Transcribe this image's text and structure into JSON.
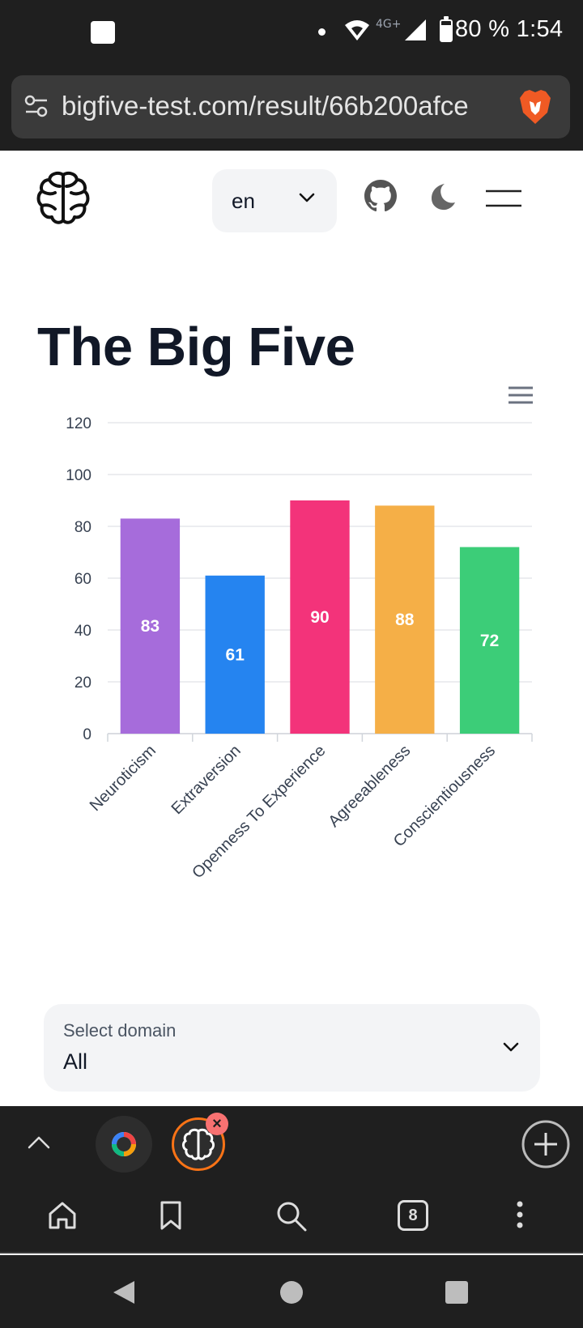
{
  "status_bar": {
    "network": "4G+",
    "battery_percent": "80 %",
    "battery_level": 0.8,
    "time": "1:54",
    "text": "80 % 1:54"
  },
  "browser": {
    "url": "bigfive-test.com/result/66b200afce",
    "open_tabs": "8"
  },
  "header": {
    "language": "en",
    "icons": [
      "brain-logo-icon",
      "github-icon",
      "moon-icon",
      "menu-icon"
    ]
  },
  "page": {
    "title": "The Big Five"
  },
  "chart_data": {
    "type": "bar",
    "categories": [
      "Neuroticism",
      "Extraversion",
      "Openness To Experience",
      "Agreeableness",
      "Conscientiousness"
    ],
    "values": [
      83,
      61,
      90,
      88,
      72
    ],
    "colors": [
      "#a66cdb",
      "#2584f0",
      "#f3337a",
      "#f5af47",
      "#3ccd78"
    ],
    "ylim": [
      0,
      120
    ],
    "yticks": [
      "0",
      "20",
      "40",
      "60",
      "80",
      "100",
      "120"
    ],
    "data_labels": [
      "83",
      "61",
      "90",
      "88",
      "72"
    ],
    "grid": true,
    "legend": "none"
  },
  "domain_select": {
    "label": "Select domain",
    "value": "All"
  }
}
